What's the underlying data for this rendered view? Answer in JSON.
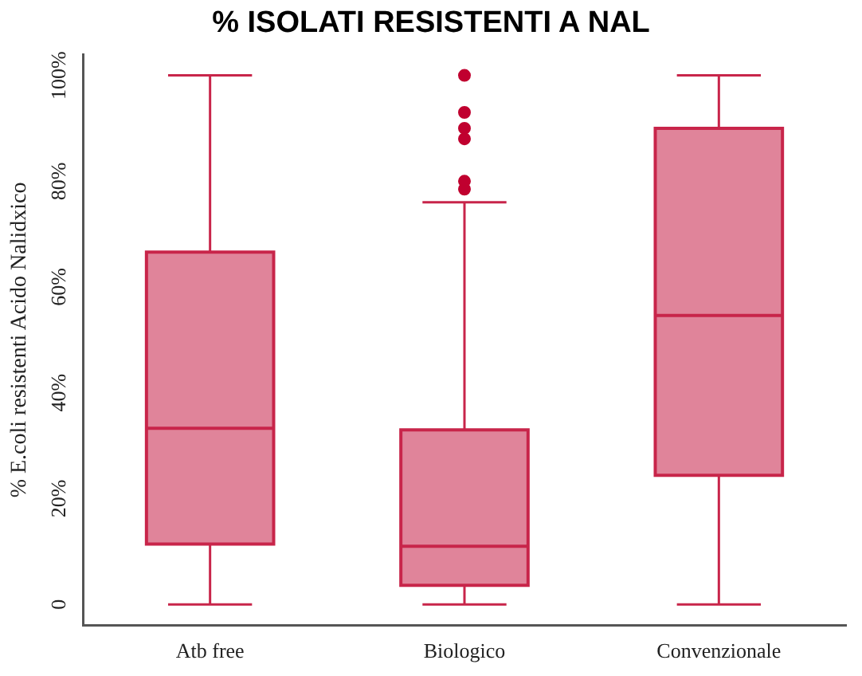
{
  "chart_data": {
    "type": "box",
    "title": "% ISOLATI RESISTENTI A NAL",
    "ylabel": "% E.coli resistenti Acido Nalidxico",
    "categories": [
      "Atb free",
      "Biologico",
      "Convenzionale"
    ],
    "color": "#e0849a",
    "ylim": [
      -4,
      104
    ],
    "yticks": [
      0,
      {
        "value": 20,
        "label": "20%"
      },
      {
        "value": 40,
        "label": "40%"
      },
      {
        "value": 60,
        "label": "60%"
      },
      {
        "value": 80,
        "label": "80%"
      },
      {
        "value": 100,
        "label": "100%"
      }
    ],
    "grid": false,
    "boxes": [
      {
        "low": 0,
        "q1": 11.4,
        "median": 33.3,
        "q3": 66.6,
        "high": 100
      },
      {
        "low": 0,
        "q1": 3.6,
        "median": 11,
        "q3": 33,
        "high": 76,
        "outliers": [
          100,
          93,
          90,
          88,
          80,
          78.5
        ]
      },
      {
        "low": 0,
        "q1": 24.4,
        "median": 54.6,
        "q3": 90,
        "high": 100
      }
    ]
  }
}
